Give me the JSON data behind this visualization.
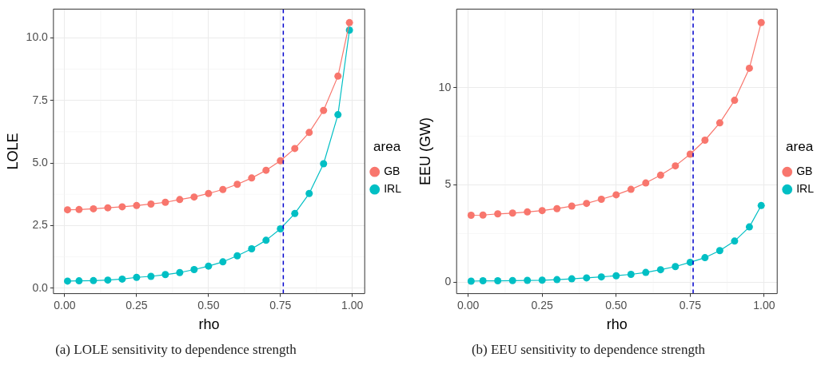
{
  "chart_data": [
    {
      "type": "line",
      "xlabel": "rho",
      "ylabel": "LOLE",
      "legend_title": "area",
      "legend": "right",
      "grid": true,
      "marker": "circle",
      "x": [
        0.01,
        0.05,
        0.1,
        0.15,
        0.2,
        0.25,
        0.3,
        0.35,
        0.4,
        0.45,
        0.5,
        0.55,
        0.6,
        0.65,
        0.7,
        0.75,
        0.8,
        0.85,
        0.9,
        0.95,
        0.99
      ],
      "series": [
        {
          "name": "GB",
          "color": "#f8766d",
          "values": [
            3.13,
            3.14,
            3.17,
            3.21,
            3.25,
            3.3,
            3.36,
            3.43,
            3.54,
            3.64,
            3.78,
            3.94,
            4.15,
            4.4,
            4.71,
            5.09,
            5.58,
            6.22,
            7.1,
            8.47,
            10.61
          ]
        },
        {
          "name": "IRL",
          "color": "#00bfc4",
          "values": [
            0.28,
            0.29,
            0.3,
            0.32,
            0.36,
            0.43,
            0.47,
            0.54,
            0.62,
            0.74,
            0.88,
            1.05,
            1.29,
            1.57,
            1.91,
            2.37,
            2.98,
            3.78,
            4.97,
            6.93,
            10.31
          ]
        }
      ],
      "xlim": [
        -0.039,
        1.043
      ],
      "ylim": [
        -0.22,
        11.15
      ],
      "xticks": [
        {
          "value": 0,
          "label": "0.00"
        },
        {
          "value": 0.25,
          "label": "0.25"
        },
        {
          "value": 0.5,
          "label": "0.50"
        },
        {
          "value": 0.75,
          "label": "0.75"
        },
        {
          "value": 1,
          "label": "1.00"
        }
      ],
      "yticks": [
        {
          "value": 0,
          "label": "0.0"
        },
        {
          "value": 2.5,
          "label": "2.5"
        },
        {
          "value": 5,
          "label": "5.0"
        },
        {
          "value": 7.5,
          "label": "7.5"
        },
        {
          "value": 10,
          "label": "10.0"
        }
      ],
      "ref_lines": [
        {
          "axis": "x",
          "value": 0.76,
          "color": "#0000cd",
          "line_style": "dashed"
        }
      ],
      "annotations": [
        "(a) LOLE sensitivity to dependence strength"
      ]
    },
    {
      "type": "line",
      "xlabel": "rho",
      "ylabel": "EEU (GW)",
      "legend_title": "area",
      "legend": "right",
      "grid": true,
      "marker": "circle",
      "x": [
        0.01,
        0.05,
        0.1,
        0.15,
        0.2,
        0.25,
        0.3,
        0.35,
        0.4,
        0.45,
        0.5,
        0.55,
        0.6,
        0.65,
        0.7,
        0.75,
        0.8,
        0.85,
        0.9,
        0.95,
        0.99
      ],
      "series": [
        {
          "name": "GB",
          "color": "#f8766d",
          "values": [
            3.44,
            3.45,
            3.51,
            3.55,
            3.61,
            3.68,
            3.78,
            3.91,
            4.05,
            4.26,
            4.49,
            4.77,
            5.1,
            5.5,
            5.98,
            6.58,
            7.3,
            8.19,
            9.35,
            11.0,
            13.35
          ]
        },
        {
          "name": "IRL",
          "color": "#00bfc4",
          "values": [
            0.05,
            0.07,
            0.07,
            0.08,
            0.09,
            0.1,
            0.13,
            0.17,
            0.22,
            0.27,
            0.33,
            0.4,
            0.5,
            0.64,
            0.8,
            1.02,
            1.26,
            1.62,
            2.11,
            2.84,
            3.94
          ]
        }
      ],
      "xlim": [
        -0.039,
        1.044
      ],
      "ylim": [
        -0.59,
        14.04
      ],
      "xticks": [
        {
          "value": 0,
          "label": "0.00"
        },
        {
          "value": 0.25,
          "label": "0.25"
        },
        {
          "value": 0.5,
          "label": "0.50"
        },
        {
          "value": 0.75,
          "label": "0.75"
        },
        {
          "value": 1,
          "label": "1.00"
        }
      ],
      "yticks": [
        0,
        5,
        10
      ],
      "ref_lines": [
        {
          "axis": "x",
          "value": 0.76,
          "color": "#0000cd",
          "line_style": "dashed"
        }
      ],
      "annotations": [
        "(b) EEU sensitivity to dependence strength"
      ]
    }
  ]
}
